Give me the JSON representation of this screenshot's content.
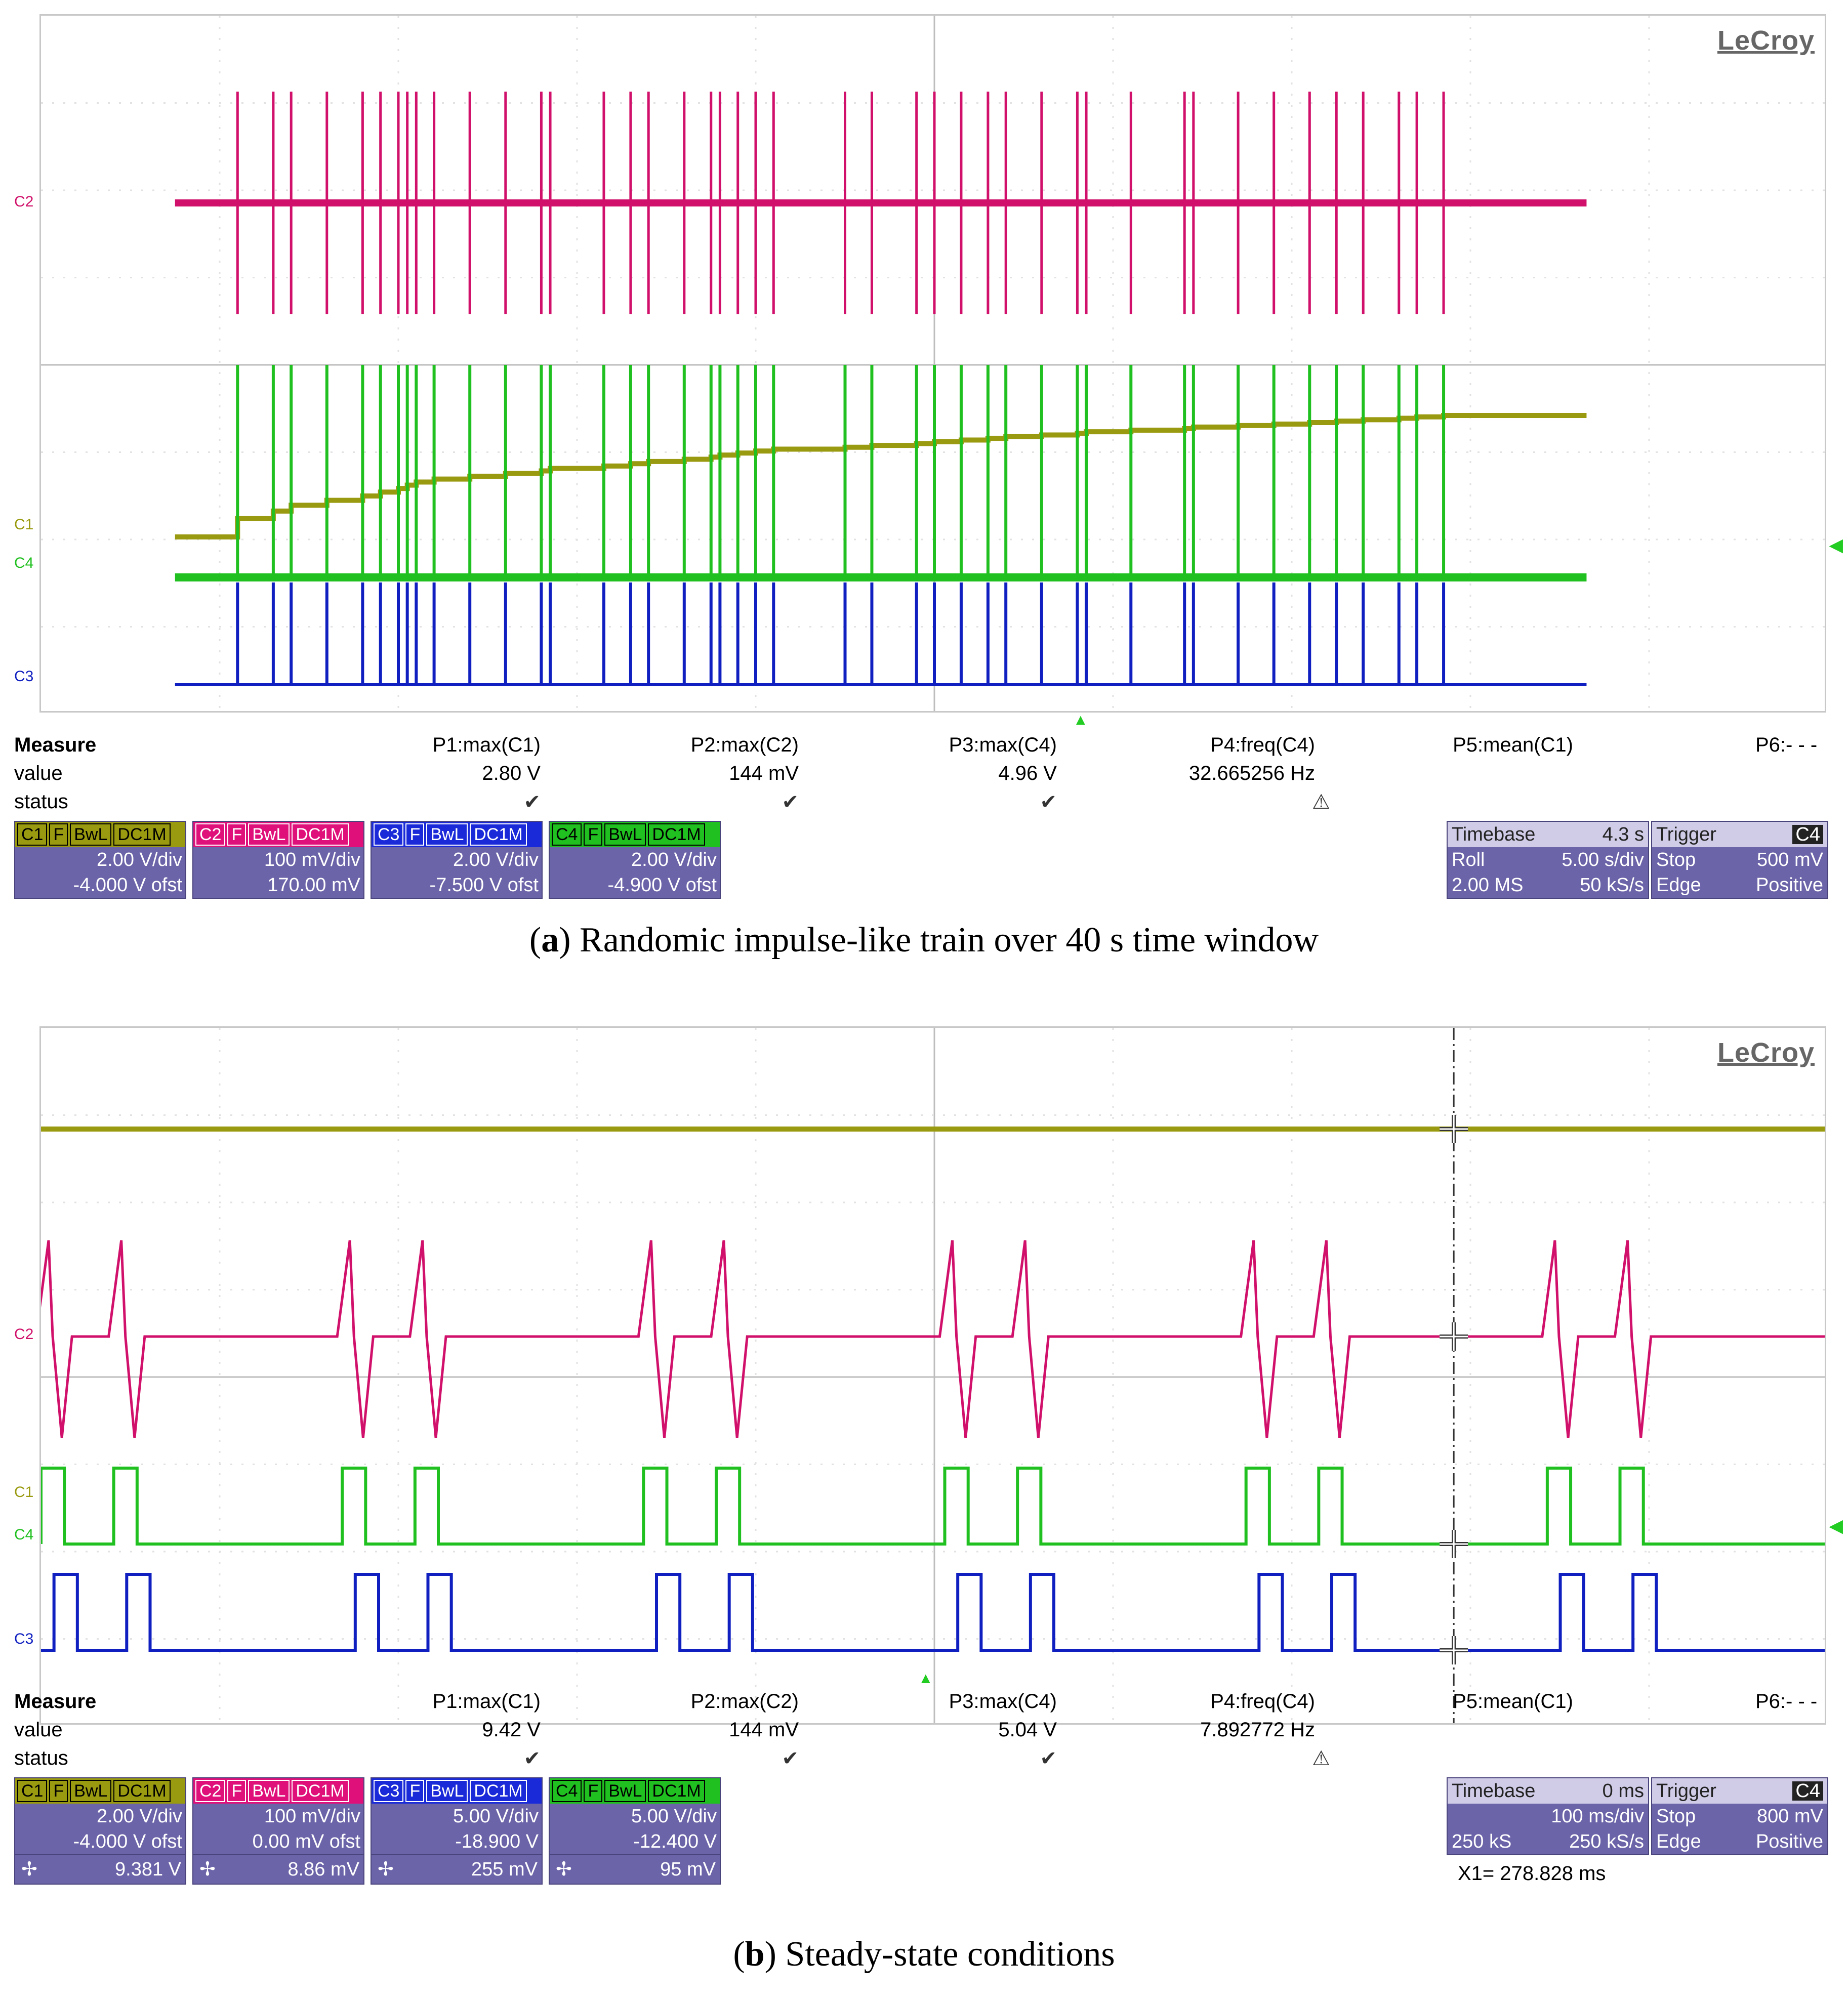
{
  "chart_data": [
    {
      "type": "line",
      "brand": "LeCroy",
      "caption_letter": "a",
      "caption_text": ") Randomic impulse-like train over 40 s time window",
      "caption_open": "(",
      "channel_labels": [
        "C2",
        "C1",
        "C4",
        "C3"
      ],
      "colors": {
        "C1": "#9a9a10",
        "C2": "#d0106a",
        "C3": "#1020c0",
        "C4": "#20c020"
      },
      "pulse_times": [
        2.2,
        2.6,
        2.8,
        3.2,
        3.6,
        3.8,
        4.0,
        4.1,
        4.2,
        4.4,
        4.8,
        5.2,
        5.6,
        5.7,
        6.3,
        6.6,
        6.8,
        7.2,
        7.5,
        7.6,
        7.8,
        8.0,
        8.2,
        9.0,
        9.3,
        9.8,
        10.0,
        10.3,
        10.6,
        10.8,
        11.2,
        11.6,
        11.7,
        12.2,
        12.8,
        12.9,
        13.4,
        13.8,
        14.2,
        14.5,
        14.8,
        15.2,
        15.4,
        15.7
      ],
      "c1_trend": {
        "start": 2.0,
        "end": 3.15
      },
      "measure": {
        "title": "Measure",
        "row_labels": [
          "value",
          "status"
        ],
        "params": [
          {
            "name": "P1:max(C1)",
            "value": "2.80 V",
            "status": "✔"
          },
          {
            "name": "P2:max(C2)",
            "value": "144 mV",
            "status": "✔"
          },
          {
            "name": "P3:max(C4)",
            "value": "4.96 V",
            "status": "✔"
          },
          {
            "name": "P4:freq(C4)",
            "value": "32.665256 Hz",
            "status": "⚠"
          },
          {
            "name": "P5:mean(C1)",
            "value": "",
            "status": ""
          }
        ],
        "p6": "P6:- - -"
      },
      "channels": [
        {
          "id": "C1",
          "vdiv": "2.00 V/div",
          "offset": "-4.000 V ofst",
          "color": "#9a9a10"
        },
        {
          "id": "C2",
          "vdiv": "100 mV/div",
          "offset": "170.00 mV",
          "color": "#d0106a"
        },
        {
          "id": "C3",
          "vdiv": "2.00 V/div",
          "offset": "-7.500 V ofst",
          "color": "#1020c0"
        },
        {
          "id": "C4",
          "vdiv": "2.00 V/div",
          "offset": "-4.900 V ofst",
          "color": "#20c020"
        }
      ],
      "badges": [
        "F",
        "BwL",
        "DC1M"
      ],
      "timebase": {
        "label": "Timebase",
        "delay": "4.3 s",
        "mode": "Roll",
        "sdiv": "5.00 s/div",
        "points": "2.00 MS",
        "rate": "50 kS/s"
      },
      "trigger": {
        "label": "Trigger",
        "source": "C4",
        "state": "Stop",
        "level": "500 mV",
        "type": "Edge",
        "slope": "Positive"
      }
    },
    {
      "type": "line",
      "brand": "LeCroy",
      "caption_letter": "b",
      "caption_text": ") Steady-state conditions",
      "caption_open": "(",
      "channel_labels": [
        "C2",
        "C1",
        "C4",
        "C3"
      ],
      "colors": {
        "C1": "#9a9a10",
        "C2": "#d0106a",
        "C3": "#1020c0",
        "C4": "#20c020"
      },
      "pulse_starts_ms": [
        0,
        140,
        580,
        720,
        1160,
        1300,
        1740,
        1880,
        2320,
        2460,
        2900,
        3040
      ],
      "pulse_width_ms": 45,
      "time_window_ms": [
        0,
        3440
      ],
      "cursor_ms": 2720,
      "measure": {
        "title": "Measure",
        "row_labels": [
          "value",
          "status"
        ],
        "params": [
          {
            "name": "P1:max(C1)",
            "value": "9.42 V",
            "status": "✔"
          },
          {
            "name": "P2:max(C2)",
            "value": "144 mV",
            "status": "✔"
          },
          {
            "name": "P3:max(C4)",
            "value": "5.04 V",
            "status": "✔"
          },
          {
            "name": "P4:freq(C4)",
            "value": "7.892772 Hz",
            "status": "⚠"
          },
          {
            "name": "P5:mean(C1)",
            "value": "",
            "status": ""
          }
        ],
        "p6": "P6:- - -"
      },
      "channels": [
        {
          "id": "C1",
          "vdiv": "2.00 V/div",
          "offset": "-4.000 V ofst",
          "cursor": "9.381 V",
          "color": "#9a9a10"
        },
        {
          "id": "C2",
          "vdiv": "100 mV/div",
          "offset": "0.00 mV ofst",
          "cursor": "8.86 mV",
          "color": "#d0106a"
        },
        {
          "id": "C3",
          "vdiv": "5.00 V/div",
          "offset": "-18.900 V",
          "cursor": "255 mV",
          "color": "#1020c0"
        },
        {
          "id": "C4",
          "vdiv": "5.00 V/div",
          "offset": "-12.400 V",
          "cursor": "95 mV",
          "color": "#20c020"
        }
      ],
      "badges": [
        "F",
        "BwL",
        "DC1M"
      ],
      "cursor_glyph": "✢",
      "timebase": {
        "label": "Timebase",
        "delay": "0 ms",
        "mode": "",
        "sdiv": "100 ms/div",
        "points": "250 kS",
        "rate": "250 kS/s"
      },
      "trigger": {
        "label": "Trigger",
        "source": "C4",
        "state": "Stop",
        "level": "800 mV",
        "type": "Edge",
        "slope": "Positive"
      },
      "cursor_readout": "X1=  278.828 ms"
    }
  ]
}
